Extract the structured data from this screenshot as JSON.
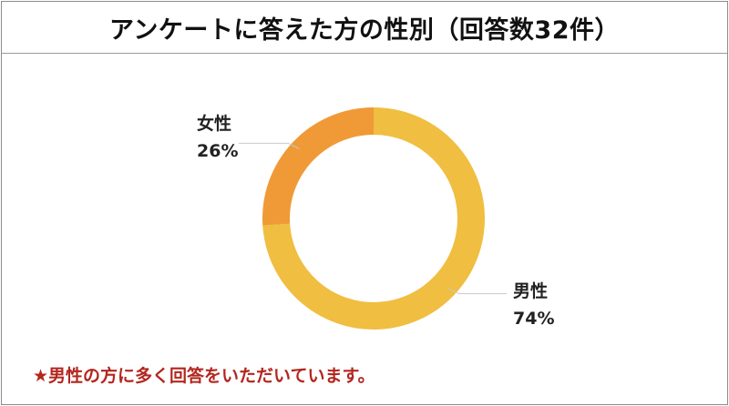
{
  "title": "アンケートに答えた方の性別（回答数32件）",
  "note": "★男性の方に多く回答をいただいています。",
  "chart_data": {
    "type": "pie",
    "donut": true,
    "title": "アンケートに答えた方の性別（回答数32件）",
    "slices": [
      {
        "name": "男性",
        "label": "74%",
        "value": 74,
        "color": "#F0BE40"
      },
      {
        "name": "女性",
        "label": "26%",
        "value": 26,
        "color": "#F09A37"
      }
    ],
    "start": "12 o'clock",
    "direction": "clockwise",
    "legend": "none",
    "labels": "outside with leader lines"
  }
}
